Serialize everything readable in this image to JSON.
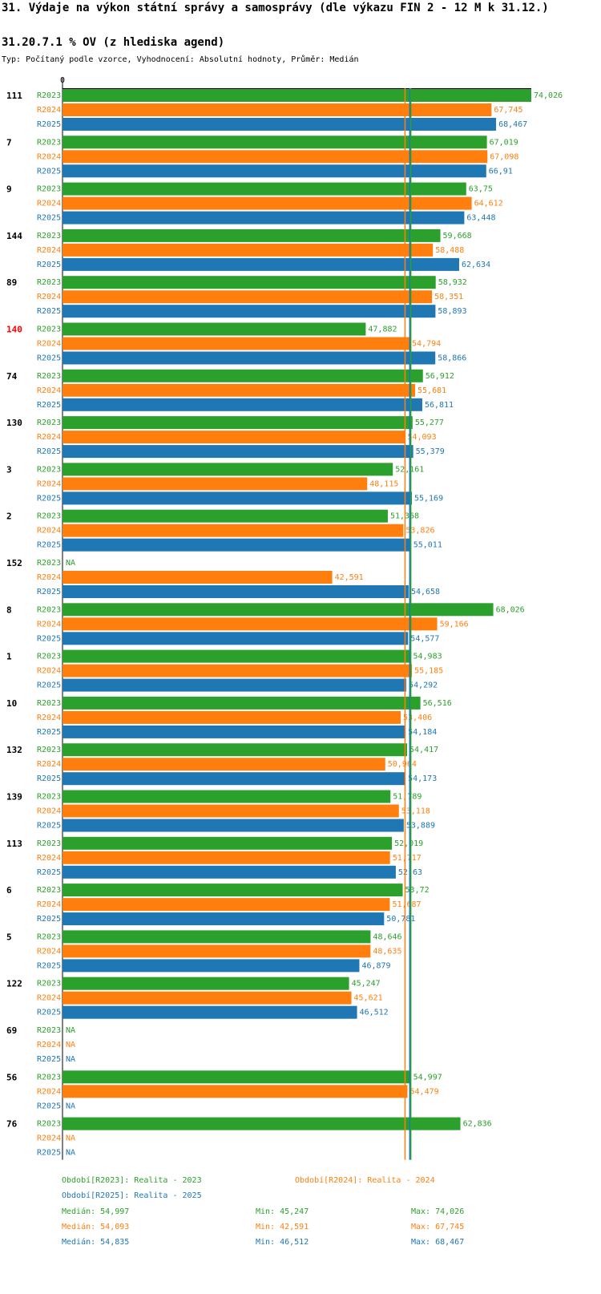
{
  "header": {
    "title": "31. Výdaje na výkon státní správy a samosprávy (dle výkazu FIN 2 - 12 M k 31.12.)",
    "subtitle": "31.20.7.1 % OV (z hlediska agend)",
    "type_line": "Typ: Počítaný podle vzorce, Vyhodnocení: Absolutní hodnoty, Průměr: Medián"
  },
  "colors": {
    "R2023": "#2ca02c",
    "R2024": "#ff7f0e",
    "R2025": "#1f77b4",
    "highlight": "#ff0000",
    "axis": "#000000"
  },
  "chart_data": {
    "type": "bar",
    "orientation": "horizontal",
    "title": "31.20.7.1 % OV (z hlediska agend)",
    "xlim": [
      0,
      74.026
    ],
    "x_tick_label": "0",
    "series_names": [
      "R2023",
      "R2024",
      "R2025"
    ],
    "highlighted_category": "140",
    "missing_label": "NA",
    "categories": [
      {
        "id": "111",
        "values": [
          74.026,
          67.745,
          68.467
        ],
        "labels": [
          "74,026",
          "67,745",
          "68,467"
        ]
      },
      {
        "id": "7",
        "values": [
          67.019,
          67.098,
          66.91
        ],
        "labels": [
          "67,019",
          "67,098",
          "66,91"
        ]
      },
      {
        "id": "9",
        "values": [
          63.75,
          64.612,
          63.448
        ],
        "labels": [
          "63,75",
          "64,612",
          "63,448"
        ]
      },
      {
        "id": "144",
        "values": [
          59.668,
          58.488,
          62.634
        ],
        "labels": [
          "59,668",
          "58,488",
          "62,634"
        ]
      },
      {
        "id": "89",
        "values": [
          58.932,
          58.351,
          58.893
        ],
        "labels": [
          "58,932",
          "58,351",
          "58,893"
        ]
      },
      {
        "id": "140",
        "values": [
          47.882,
          54.794,
          58.866
        ],
        "labels": [
          "47,882",
          "54,794",
          "58,866"
        ]
      },
      {
        "id": "74",
        "values": [
          56.912,
          55.681,
          56.811
        ],
        "labels": [
          "56,912",
          "55,681",
          "56,811"
        ]
      },
      {
        "id": "130",
        "values": [
          55.277,
          54.093,
          55.379
        ],
        "labels": [
          "55,277",
          "54,093",
          "55,379"
        ]
      },
      {
        "id": "3",
        "values": [
          52.161,
          48.115,
          55.169
        ],
        "labels": [
          "52,161",
          "48,115",
          "55,169"
        ]
      },
      {
        "id": "2",
        "values": [
          51.368,
          53.826,
          55.011
        ],
        "labels": [
          "51,368",
          "53,826",
          "55,011"
        ]
      },
      {
        "id": "152",
        "values": [
          null,
          42.591,
          54.658
        ],
        "labels": [
          "NA",
          "42,591",
          "54,658"
        ]
      },
      {
        "id": "8",
        "values": [
          68.026,
          59.166,
          54.577
        ],
        "labels": [
          "68,026",
          "59,166",
          "54,577"
        ]
      },
      {
        "id": "1",
        "values": [
          54.983,
          55.185,
          54.292
        ],
        "labels": [
          "54,983",
          "55,185",
          "54,292"
        ]
      },
      {
        "id": "10",
        "values": [
          56.516,
          53.406,
          54.184
        ],
        "labels": [
          "56,516",
          "53,406",
          "54,184"
        ]
      },
      {
        "id": "132",
        "values": [
          54.417,
          50.964,
          54.173
        ],
        "labels": [
          "54,417",
          "50,964",
          "54,173"
        ]
      },
      {
        "id": "139",
        "values": [
          51.789,
          53.118,
          53.889
        ],
        "labels": [
          "51,789",
          "53,118",
          "53,889"
        ]
      },
      {
        "id": "113",
        "values": [
          52.019,
          51.717,
          52.63
        ],
        "labels": [
          "52,019",
          "51,717",
          "52,63"
        ]
      },
      {
        "id": "6",
        "values": [
          53.72,
          51.687,
          50.781
        ],
        "labels": [
          "53,72",
          "51,687",
          "50,781"
        ]
      },
      {
        "id": "5",
        "values": [
          48.646,
          48.635,
          46.879
        ],
        "labels": [
          "48,646",
          "48,635",
          "46,879"
        ]
      },
      {
        "id": "122",
        "values": [
          45.247,
          45.621,
          46.512
        ],
        "labels": [
          "45,247",
          "45,621",
          "46,512"
        ]
      },
      {
        "id": "69",
        "values": [
          null,
          null,
          null
        ],
        "labels": [
          "NA",
          "NA",
          "NA"
        ]
      },
      {
        "id": "56",
        "values": [
          54.997,
          54.479,
          null
        ],
        "labels": [
          "54,997",
          "54,479",
          "NA"
        ]
      },
      {
        "id": "76",
        "values": [
          62.836,
          null,
          null
        ],
        "labels": [
          "62,836",
          "NA",
          "NA"
        ]
      }
    ],
    "medians": {
      "R2023": 54.997,
      "R2024": 54.093,
      "R2025": 54.835
    }
  },
  "legend": {
    "period_r2023": "Období[R2023]: Realita - 2023",
    "period_r2024": "Období[R2024]: Realita - 2024",
    "period_r2025": "Období[R2025]: Realita - 2025",
    "stats": [
      {
        "series": "R2023",
        "median": "Medián: 54,997",
        "min": "Min: 45,247",
        "max": "Max: 74,026"
      },
      {
        "series": "R2024",
        "median": "Medián: 54,093",
        "min": "Min: 42,591",
        "max": "Max: 67,745"
      },
      {
        "series": "R2025",
        "median": "Medián: 54,835",
        "min": "Min: 46,512",
        "max": "Max: 68,467"
      }
    ]
  }
}
